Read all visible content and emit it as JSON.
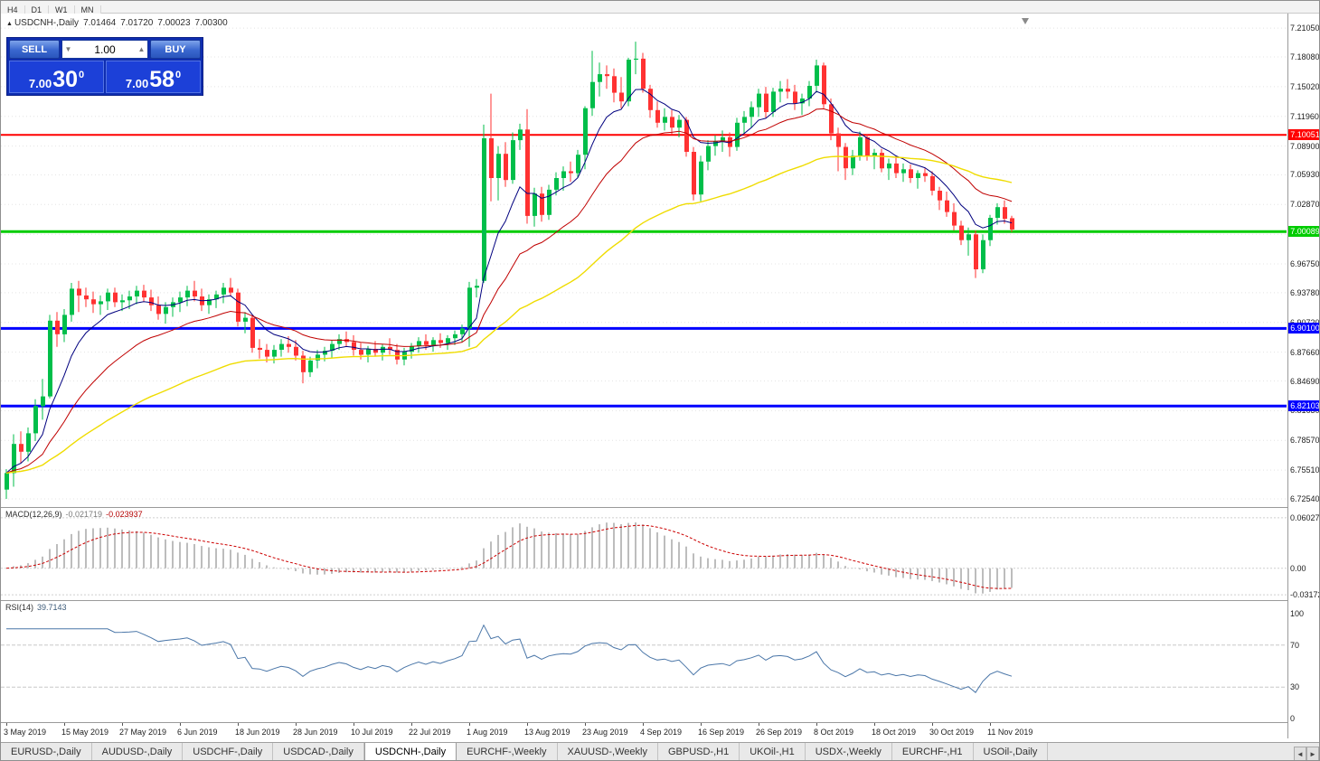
{
  "toolbar": {
    "periods": [
      "H4",
      "D1",
      "W1",
      "MN"
    ]
  },
  "quote_header": {
    "collapse_icon": "▲",
    "symbol": "USDCNH-,Daily",
    "open": "7.01464",
    "high": "7.01720",
    "low": "7.00023",
    "close": "7.00300"
  },
  "trade_panel": {
    "sell_label": "SELL",
    "buy_label": "BUY",
    "volume": "1.00",
    "sell_price": {
      "base": "7.00",
      "pips": "30",
      "point": "0"
    },
    "buy_price": {
      "base": "7.00",
      "pips": "58",
      "point": "0"
    }
  },
  "indicators": {
    "macd": {
      "label": "MACD(12,26,9)",
      "value": "-0.021719",
      "signal": "-0.023937",
      "axis_labels": [
        "0.060273",
        "0.00",
        "-0.03172"
      ],
      "axis_values": [
        0.060273,
        0,
        -0.03172
      ]
    },
    "rsi": {
      "label": "RSI(14)",
      "value": "39.7143",
      "axis_labels": [
        "100",
        "70",
        "30",
        "0"
      ],
      "guide_levels": [
        70,
        30
      ]
    }
  },
  "price_axis": {
    "labels": [
      "7.21050",
      "7.18080",
      "7.15020",
      "7.11960",
      "7.08900",
      "7.05930",
      "7.02870",
      "6.99810",
      "6.96750",
      "6.93780",
      "6.90720",
      "6.87660",
      "6.84690",
      "6.81630",
      "6.78570",
      "6.75510",
      "6.72540"
    ],
    "level_lines": [
      {
        "price": 7.10051,
        "label": "7.10051",
        "color": "#FF0000",
        "width": 2
      },
      {
        "price": 7.00089,
        "label": "7.00089",
        "color": "#00CC00",
        "width": 3
      },
      {
        "price": 6.901,
        "label": "6.90100",
        "color": "#0000FF",
        "width": 3
      },
      {
        "price": 6.82103,
        "label": "6.82103",
        "color": "#0000FF",
        "width": 3
      }
    ]
  },
  "time_axis": {
    "labels": [
      "3 May 2019",
      "15 May 2019",
      "27 May 2019",
      "6 Jun 2019",
      "18 Jun 2019",
      "28 Jun 2019",
      "10 Jul 2019",
      "22 Jul 2019",
      "1 Aug 2019",
      "13 Aug 2019",
      "23 Aug 2019",
      "4 Sep 2019",
      "16 Sep 2019",
      "26 Sep 2019",
      "8 Oct 2019",
      "18 Oct 2019",
      "30 Oct 2019",
      "11 Nov 2019"
    ],
    "tick_every": 8
  },
  "chart_data": {
    "type": "candlestick",
    "symbol": "USDCNH",
    "timeframe": "Daily",
    "title": "USDCNH-,Daily",
    "price_range": [
      6.717,
      7.2255
    ],
    "dates_start": "3 May 2019",
    "dates_end": "14 Nov 2019",
    "candles_ohlc": [
      [
        6.735,
        6.756,
        6.7254,
        6.752
      ],
      [
        6.752,
        6.792,
        6.738,
        6.782
      ],
      [
        6.782,
        6.795,
        6.762,
        6.774
      ],
      [
        6.774,
        6.799,
        6.764,
        6.793
      ],
      [
        6.793,
        6.828,
        6.785,
        6.821
      ],
      [
        6.821,
        6.849,
        6.807,
        6.831
      ],
      [
        6.831,
        6.915,
        6.829,
        6.909
      ],
      [
        6.909,
        6.918,
        6.882,
        6.895
      ],
      [
        6.895,
        6.921,
        6.887,
        6.915
      ],
      [
        6.915,
        6.948,
        6.908,
        6.942
      ],
      [
        6.942,
        6.95,
        6.918,
        6.935
      ],
      [
        6.935,
        6.943,
        6.923,
        6.931
      ],
      [
        6.931,
        6.939,
        6.917,
        6.926
      ],
      [
        6.926,
        6.935,
        6.915,
        6.929
      ],
      [
        6.929,
        6.942,
        6.92,
        6.938
      ],
      [
        6.938,
        6.943,
        6.923,
        6.928
      ],
      [
        6.928,
        6.936,
        6.919,
        6.93
      ],
      [
        6.93,
        6.94,
        6.921,
        6.934
      ],
      [
        6.934,
        6.945,
        6.926,
        6.94
      ],
      [
        6.94,
        6.946,
        6.928,
        6.933
      ],
      [
        6.933,
        6.941,
        6.919,
        6.925
      ],
      [
        6.925,
        6.934,
        6.91,
        6.916
      ],
      [
        6.916,
        6.928,
        6.906,
        6.923
      ],
      [
        6.923,
        6.933,
        6.913,
        6.928
      ],
      [
        6.928,
        6.939,
        6.918,
        6.933
      ],
      [
        6.933,
        6.945,
        6.924,
        6.94
      ],
      [
        6.94,
        6.95,
        6.929,
        6.934
      ],
      [
        6.934,
        6.942,
        6.919,
        6.925
      ],
      [
        6.925,
        6.936,
        6.916,
        6.931
      ],
      [
        6.931,
        6.94,
        6.922,
        6.936
      ],
      [
        6.936,
        6.948,
        6.927,
        6.943
      ],
      [
        6.943,
        6.953,
        6.934,
        6.938
      ],
      [
        6.938,
        6.942,
        6.903,
        6.908
      ],
      [
        6.908,
        6.918,
        6.896,
        6.912
      ],
      [
        6.912,
        6.915,
        6.876,
        6.881
      ],
      [
        6.881,
        6.89,
        6.87,
        6.879
      ],
      [
        6.879,
        6.885,
        6.866,
        6.872
      ],
      [
        6.872,
        6.884,
        6.865,
        6.879
      ],
      [
        6.879,
        6.89,
        6.872,
        6.885
      ],
      [
        6.885,
        6.893,
        6.876,
        6.882
      ],
      [
        6.882,
        6.889,
        6.868,
        6.873
      ],
      [
        6.873,
        6.878,
        6.8445,
        6.856
      ],
      [
        6.856,
        6.872,
        6.851,
        6.868
      ],
      [
        6.868,
        6.879,
        6.86,
        6.874
      ],
      [
        6.874,
        6.882,
        6.867,
        6.878
      ],
      [
        6.878,
        6.889,
        6.871,
        6.885
      ],
      [
        6.885,
        6.895,
        6.879,
        6.89
      ],
      [
        6.89,
        6.898,
        6.882,
        6.887
      ],
      [
        6.887,
        6.894,
        6.873,
        6.879
      ],
      [
        6.879,
        6.886,
        6.869,
        6.874
      ],
      [
        6.874,
        6.883,
        6.866,
        6.88
      ],
      [
        6.88,
        6.888,
        6.872,
        6.876
      ],
      [
        6.876,
        6.885,
        6.868,
        6.882
      ],
      [
        6.882,
        6.891,
        6.874,
        6.879
      ],
      [
        6.879,
        6.885,
        6.864,
        6.869
      ],
      [
        6.869,
        6.881,
        6.863,
        6.877
      ],
      [
        6.877,
        6.886,
        6.87,
        6.883
      ],
      [
        6.883,
        6.892,
        6.876,
        6.888
      ],
      [
        6.888,
        6.895,
        6.879,
        6.884
      ],
      [
        6.884,
        6.892,
        6.877,
        6.889
      ],
      [
        6.889,
        6.896,
        6.881,
        6.886
      ],
      [
        6.886,
        6.894,
        6.879,
        6.891
      ],
      [
        6.891,
        6.899,
        6.884,
        6.895
      ],
      [
        6.895,
        6.905,
        6.887,
        6.901
      ],
      [
        6.901,
        6.949,
        6.882,
        6.943
      ],
      [
        6.943,
        6.952,
        6.933,
        6.945
      ],
      [
        6.95,
        7.111,
        6.948,
        7.097
      ],
      [
        7.097,
        7.143,
        7.032,
        7.056
      ],
      [
        7.056,
        7.089,
        7.033,
        7.081
      ],
      [
        7.081,
        7.093,
        7.047,
        7.054
      ],
      [
        7.054,
        7.103,
        7.05,
        7.095
      ],
      [
        7.095,
        7.112,
        7.085,
        7.106
      ],
      [
        7.106,
        7.127,
        7.009,
        7.017
      ],
      [
        7.017,
        7.046,
        7.006,
        7.04
      ],
      [
        7.04,
        7.047,
        7.011,
        7.018
      ],
      [
        7.018,
        7.049,
        7.013,
        7.044
      ],
      [
        7.044,
        7.062,
        7.038,
        7.056
      ],
      [
        7.056,
        7.068,
        7.043,
        7.063
      ],
      [
        7.063,
        7.073,
        7.052,
        7.061
      ],
      [
        7.061,
        7.085,
        7.056,
        7.08
      ],
      [
        7.08,
        7.13,
        7.065,
        7.128
      ],
      [
        7.128,
        7.187,
        7.12,
        7.155
      ],
      [
        7.155,
        7.175,
        7.14,
        7.163
      ],
      [
        7.163,
        7.172,
        7.148,
        7.161
      ],
      [
        7.161,
        7.169,
        7.134,
        7.144
      ],
      [
        7.144,
        7.16,
        7.128,
        7.135
      ],
      [
        7.135,
        7.18,
        7.13,
        7.178
      ],
      [
        7.178,
        7.1965,
        7.163,
        7.179
      ],
      [
        7.179,
        7.185,
        7.144,
        7.148
      ],
      [
        7.148,
        7.152,
        7.118,
        7.126
      ],
      [
        7.126,
        7.135,
        7.108,
        7.113
      ],
      [
        7.113,
        7.128,
        7.105,
        7.119
      ],
      [
        7.119,
        7.126,
        7.101,
        7.108
      ],
      [
        7.108,
        7.121,
        7.098,
        7.116
      ],
      [
        7.116,
        7.119,
        7.078,
        7.083
      ],
      [
        7.083,
        7.088,
        7.033,
        7.039
      ],
      [
        7.039,
        7.079,
        7.032,
        7.073
      ],
      [
        7.073,
        7.095,
        7.064,
        7.089
      ],
      [
        7.089,
        7.1,
        7.079,
        7.094
      ],
      [
        7.094,
        7.105,
        7.083,
        7.098
      ],
      [
        7.098,
        7.103,
        7.078,
        7.088
      ],
      [
        7.088,
        7.118,
        7.084,
        7.113
      ],
      [
        7.113,
        7.125,
        7.102,
        7.119
      ],
      [
        7.119,
        7.135,
        7.108,
        7.129
      ],
      [
        7.129,
        7.148,
        7.119,
        7.143
      ],
      [
        7.143,
        7.15,
        7.118,
        7.124
      ],
      [
        7.124,
        7.149,
        7.119,
        7.145
      ],
      [
        7.145,
        7.156,
        7.134,
        7.148
      ],
      [
        7.148,
        7.158,
        7.138,
        7.145
      ],
      [
        7.145,
        7.152,
        7.126,
        7.133
      ],
      [
        7.133,
        7.143,
        7.121,
        7.138
      ],
      [
        7.138,
        7.156,
        7.13,
        7.151
      ],
      [
        7.151,
        7.178,
        7.144,
        7.172
      ],
      [
        7.172,
        7.175,
        7.128,
        7.132
      ],
      [
        7.132,
        7.138,
        7.095,
        7.102
      ],
      [
        7.102,
        7.108,
        7.063,
        7.088
      ],
      [
        7.088,
        7.092,
        7.054,
        7.066
      ],
      [
        7.066,
        7.085,
        7.059,
        7.079
      ],
      [
        7.079,
        7.104,
        7.074,
        7.098
      ],
      [
        7.098,
        7.101,
        7.074,
        7.079
      ],
      [
        7.079,
        7.086,
        7.065,
        7.082
      ],
      [
        7.082,
        7.086,
        7.062,
        7.066
      ],
      [
        7.066,
        7.076,
        7.054,
        7.071
      ],
      [
        7.071,
        7.079,
        7.056,
        7.061
      ],
      [
        7.061,
        7.071,
        7.052,
        7.065
      ],
      [
        7.065,
        7.07,
        7.051,
        7.056
      ],
      [
        7.056,
        7.064,
        7.045,
        7.061
      ],
      [
        7.061,
        7.066,
        7.052,
        7.058
      ],
      [
        7.058,
        7.063,
        7.038,
        7.043
      ],
      [
        7.043,
        7.047,
        7.023,
        7.033
      ],
      [
        7.033,
        7.042,
        7.016,
        7.021
      ],
      [
        7.021,
        7.03,
        7.002,
        7.007
      ],
      [
        7.007,
        7.012,
        6.987,
        6.992
      ],
      [
        6.992,
        7.005,
        6.976,
        6.998
      ],
      [
        6.998,
        7.002,
        6.953,
        6.962
      ],
      [
        6.962,
        6.998,
        6.958,
        6.992
      ],
      [
        6.992,
        7.018,
        6.986,
        7.015
      ],
      [
        7.015,
        7.03,
        7.008,
        7.026
      ],
      [
        7.026,
        7.033,
        7.009,
        7.014
      ],
      [
        7.01464,
        7.0172,
        7.00023,
        7.003
      ]
    ],
    "moving_averages": [
      {
        "name": "ema-fast",
        "period": 8,
        "color": "#00007F",
        "width": 1
      },
      {
        "name": "ema-mid",
        "period": 21,
        "color": "#C00000",
        "width": 1
      },
      {
        "name": "ema-slow",
        "period": 55,
        "color": "#EFDC00",
        "width": 1.4
      }
    ],
    "macd": {
      "fast": 12,
      "slow": 26,
      "signal": 9,
      "range": [
        -0.03814,
        0.07204
      ]
    },
    "rsi": {
      "period": 14
    }
  },
  "bottom_tabs": {
    "tabs": [
      "EURUSD-,Daily",
      "AUDUSD-,Daily",
      "USDCHF-,Daily",
      "USDCAD-,Daily",
      "USDCNH-,Daily",
      "EURCHF-,Weekly",
      "XAUUSD-,Weekly",
      "GBPUSD-,H1",
      "UKOil-,H1",
      "USDX-,Weekly",
      "EURCHF-,H1",
      "USOil-,Daily"
    ],
    "active": "USDCNH-,Daily",
    "scroll_left": "◄",
    "scroll_right": "►"
  },
  "colors": {
    "candle_up": "#00BE4A",
    "candle_down": "#FF3232",
    "macd_histogram": "#BDBDBD",
    "macd_signal": "#CC0000",
    "rsi_line": "#4A76A8",
    "grid": "#E4E4E4",
    "panel_blue": "#0E2DB0"
  }
}
